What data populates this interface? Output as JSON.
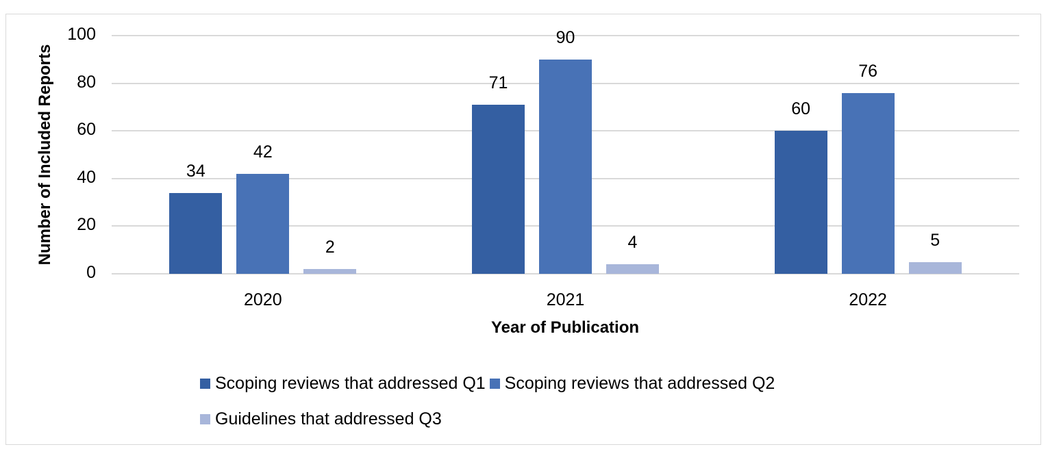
{
  "chart_data": {
    "type": "bar",
    "title": "",
    "xlabel": "Year of Publication",
    "ylabel": "Number of Included Reports",
    "ylim": [
      0,
      100
    ],
    "yticks": [
      "0",
      "20",
      "40",
      "60",
      "80",
      "100"
    ],
    "grid": true,
    "legend_position": "bottom",
    "categories": [
      "2020",
      "2021",
      "2022"
    ],
    "series": [
      {
        "name": "Scoping reviews that addressed Q1",
        "color": "#345FA2",
        "values": [
          34,
          71,
          60
        ]
      },
      {
        "name": "Scoping reviews that addressed Q2",
        "color": "#4872B6",
        "values": [
          42,
          90,
          76
        ]
      },
      {
        "name": "Guidelines that addressed Q3",
        "color": "#A8B6DA",
        "values": [
          2,
          4,
          5
        ]
      }
    ]
  }
}
